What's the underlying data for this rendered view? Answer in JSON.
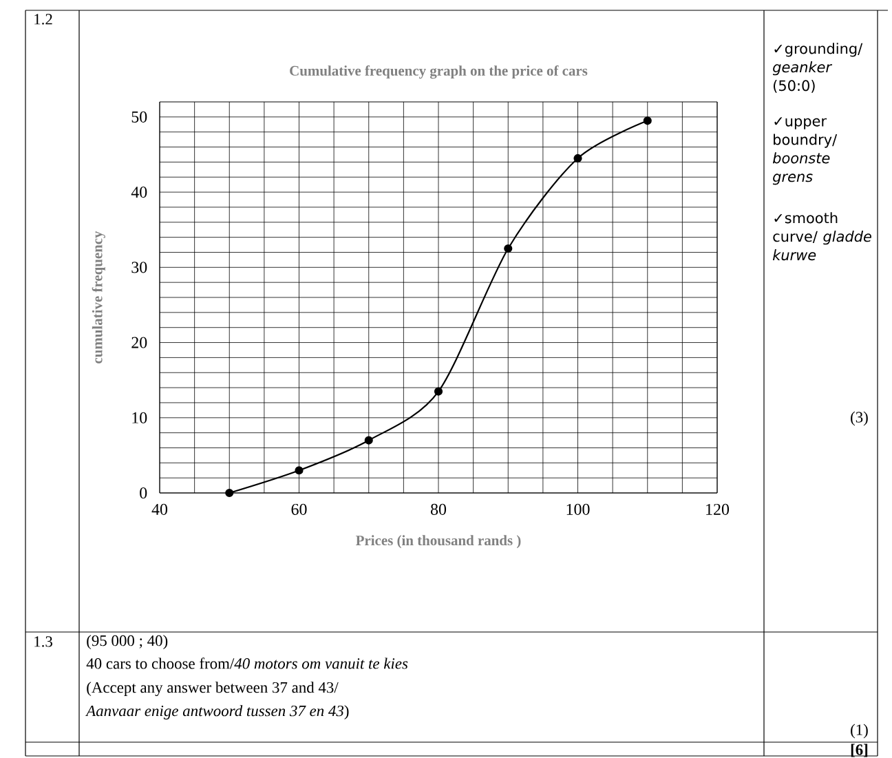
{
  "chart_data": {
    "type": "line",
    "title": "Cumulative  frequency graph on the price of cars",
    "xlabel": "Prices   (in thousand rands )",
    "ylabel": "cumulative frequency",
    "x": [
      50,
      60,
      70,
      80,
      90,
      100,
      110
    ],
    "series": [
      {
        "color": "#000000",
        "values": [
          0,
          3,
          7,
          13.5,
          32.5,
          44.5,
          49.5
        ]
      }
    ],
    "xlim": [
      40,
      120
    ],
    "ylim": [
      0,
      52
    ],
    "xticks": [
      40,
      60,
      80,
      100,
      120
    ],
    "yticks": [
      0,
      10,
      20,
      30,
      40,
      50
    ],
    "grid": true,
    "marker": "circle",
    "line_style": "solid",
    "annotations": [
      "1.2",
      "✓grounding/ *geanker* (50:0)",
      "✓upper boundry/ *boonste grens*",
      "✓smooth curve/ *gladde kurwe*",
      "(3)",
      "1.3",
      "(95 000 ; 40)",
      "40 cars to choose from/*40 motors om vanuit te kies*",
      "(Accept any answer between 37 and 43/",
      "*Aanvaar enige antwoord tussen 37 en 43*)",
      "(1)",
      "**[6]**"
    ]
  }
}
